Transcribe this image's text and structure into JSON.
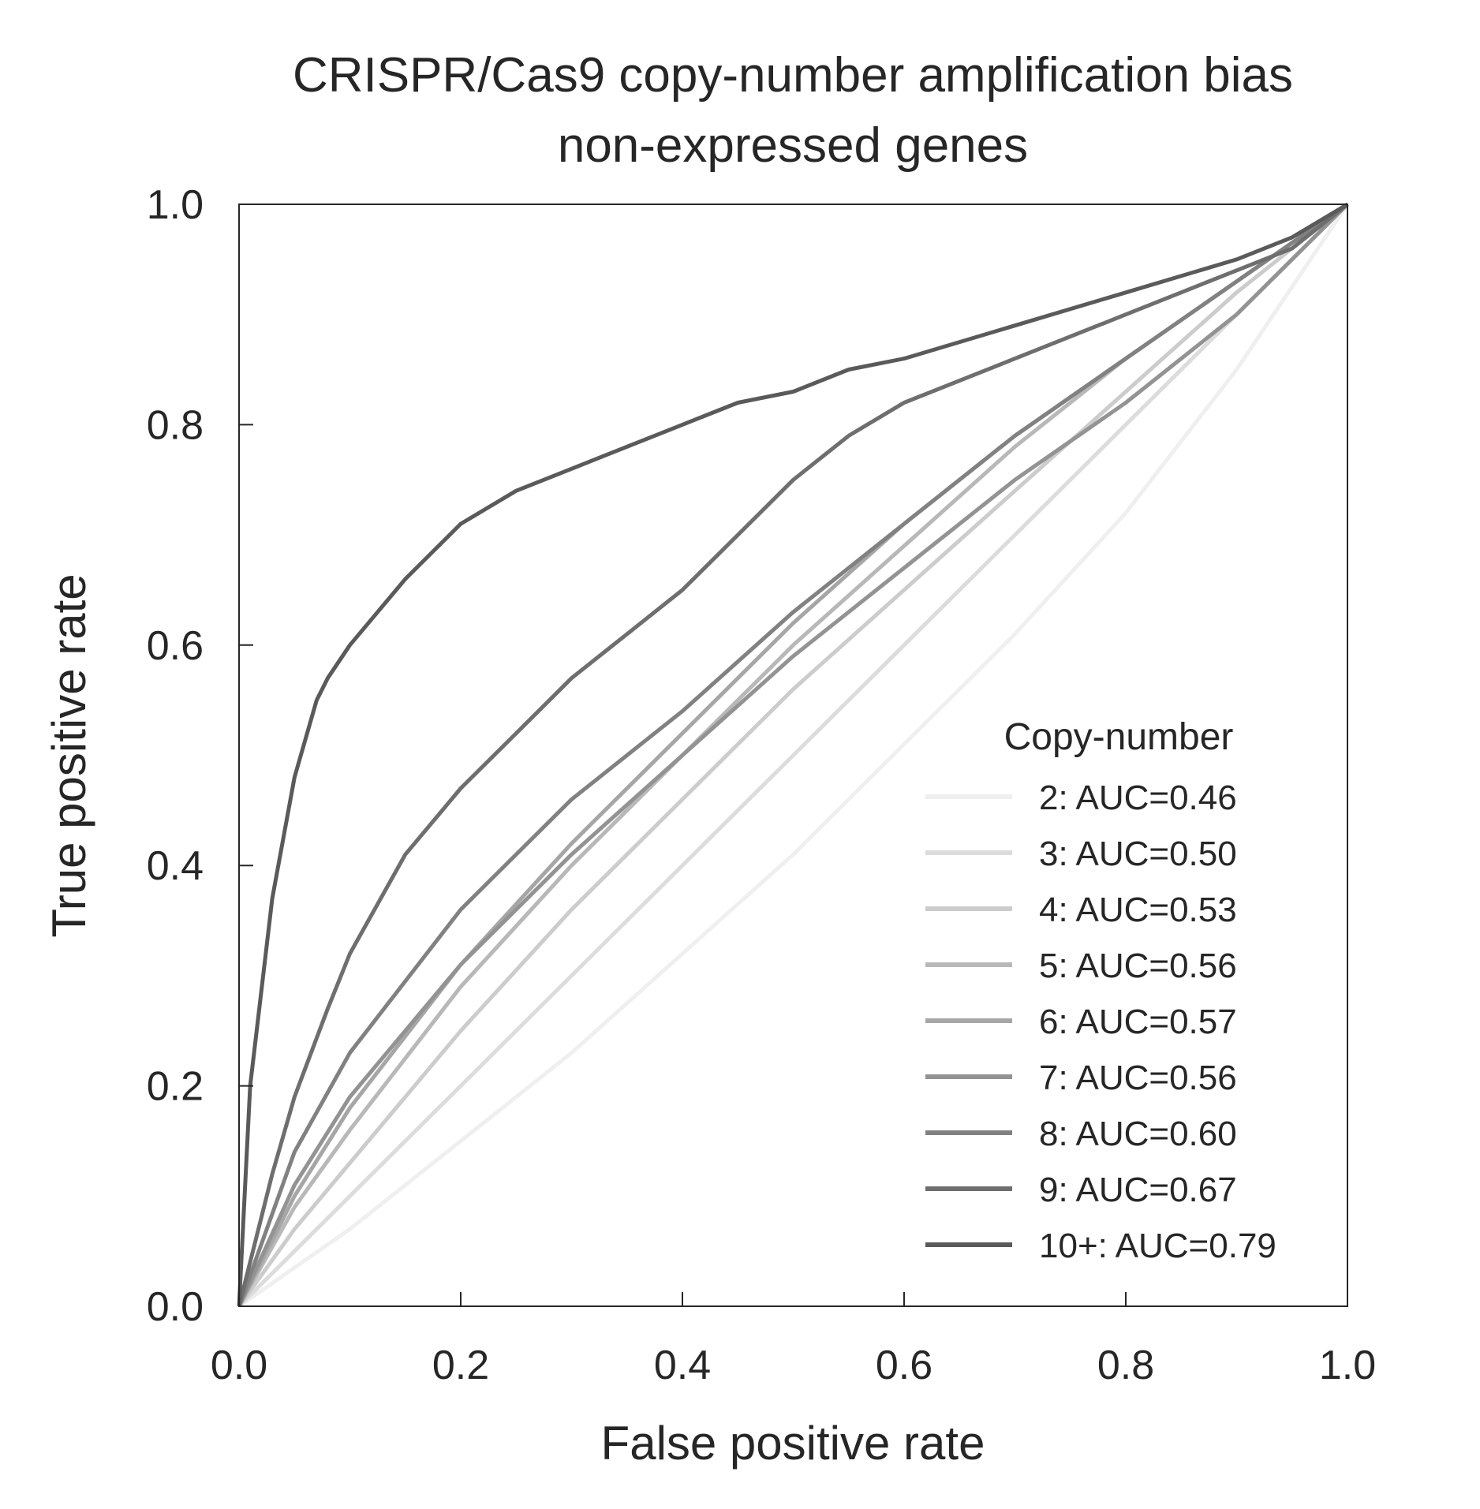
{
  "chart_data": {
    "type": "line",
    "title": "CRISPR/Cas9 copy-number amplification bias",
    "subtitle": "non-expressed genes",
    "xlabel": "False positive rate",
    "ylabel": "True positive rate",
    "xlim": [
      0.0,
      1.0
    ],
    "ylim": [
      0.0,
      1.0
    ],
    "xticks": [
      "0.0",
      "0.2",
      "0.4",
      "0.6",
      "0.8",
      "1.0"
    ],
    "yticks": [
      "0.0",
      "0.2",
      "0.4",
      "0.6",
      "0.8",
      "1.0"
    ],
    "grid": false,
    "diagonal_reference": true,
    "legend": {
      "title": "Copy-number",
      "position": "lower-right"
    },
    "series": [
      {
        "name": "2: AUC=0.46",
        "color": "#efefef",
        "x": [
          0,
          0.1,
          0.2,
          0.3,
          0.4,
          0.5,
          0.6,
          0.7,
          0.8,
          0.9,
          1.0
        ],
        "y": [
          0,
          0.07,
          0.15,
          0.23,
          0.32,
          0.41,
          0.51,
          0.61,
          0.72,
          0.85,
          1.0
        ]
      },
      {
        "name": "3: AUC=0.50",
        "color": "#dcdcdc",
        "x": [
          0,
          0.1,
          0.2,
          0.3,
          0.4,
          0.5,
          0.6,
          0.7,
          0.8,
          0.9,
          1.0
        ],
        "y": [
          0,
          0.1,
          0.2,
          0.3,
          0.4,
          0.5,
          0.6,
          0.7,
          0.8,
          0.9,
          1.0
        ]
      },
      {
        "name": "4: AUC=0.53",
        "color": "#cccccc",
        "x": [
          0,
          0.05,
          0.1,
          0.2,
          0.3,
          0.4,
          0.5,
          0.6,
          0.7,
          0.8,
          0.9,
          1.0
        ],
        "y": [
          0,
          0.07,
          0.13,
          0.25,
          0.36,
          0.46,
          0.56,
          0.65,
          0.74,
          0.83,
          0.92,
          1.0
        ]
      },
      {
        "name": "5: AUC=0.56",
        "color": "#b8b8b8",
        "x": [
          0,
          0.05,
          0.1,
          0.2,
          0.3,
          0.4,
          0.5,
          0.6,
          0.7,
          0.8,
          0.9,
          1.0
        ],
        "y": [
          0,
          0.09,
          0.16,
          0.29,
          0.4,
          0.5,
          0.6,
          0.69,
          0.78,
          0.86,
          0.93,
          1.0
        ]
      },
      {
        "name": "6: AUC=0.57",
        "color": "#a6a6a6",
        "x": [
          0,
          0.05,
          0.1,
          0.2,
          0.3,
          0.4,
          0.5,
          0.6,
          0.7,
          0.8,
          0.9,
          1.0
        ],
        "y": [
          0,
          0.1,
          0.18,
          0.31,
          0.42,
          0.52,
          0.62,
          0.71,
          0.79,
          0.86,
          0.93,
          1.0
        ]
      },
      {
        "name": "7: AUC=0.56",
        "color": "#939393",
        "x": [
          0,
          0.05,
          0.1,
          0.2,
          0.3,
          0.4,
          0.5,
          0.6,
          0.7,
          0.8,
          0.9,
          1.0
        ],
        "y": [
          0,
          0.11,
          0.19,
          0.31,
          0.41,
          0.5,
          0.59,
          0.67,
          0.75,
          0.82,
          0.9,
          1.0
        ]
      },
      {
        "name": "8: AUC=0.60",
        "color": "#818181",
        "x": [
          0,
          0.05,
          0.1,
          0.2,
          0.3,
          0.4,
          0.5,
          0.6,
          0.7,
          0.8,
          0.9,
          1.0
        ],
        "y": [
          0,
          0.14,
          0.23,
          0.36,
          0.46,
          0.54,
          0.63,
          0.71,
          0.79,
          0.86,
          0.93,
          1.0
        ]
      },
      {
        "name": "9: AUC=0.67",
        "color": "#6e6e6e",
        "x": [
          0,
          0.03,
          0.05,
          0.08,
          0.1,
          0.15,
          0.2,
          0.25,
          0.3,
          0.35,
          0.4,
          0.45,
          0.5,
          0.55,
          0.6,
          0.7,
          0.8,
          0.9,
          0.95,
          1.0
        ],
        "y": [
          0,
          0.12,
          0.19,
          0.27,
          0.32,
          0.41,
          0.47,
          0.52,
          0.57,
          0.61,
          0.65,
          0.7,
          0.75,
          0.79,
          0.82,
          0.86,
          0.9,
          0.94,
          0.96,
          1.0
        ]
      },
      {
        "name": "10+: AUC=0.79",
        "color": "#5a5a5a",
        "x": [
          0,
          0.01,
          0.03,
          0.05,
          0.07,
          0.08,
          0.1,
          0.15,
          0.2,
          0.25,
          0.3,
          0.35,
          0.4,
          0.45,
          0.5,
          0.55,
          0.6,
          0.7,
          0.8,
          0.9,
          0.95,
          1.0
        ],
        "y": [
          0,
          0.2,
          0.37,
          0.48,
          0.55,
          0.57,
          0.6,
          0.66,
          0.71,
          0.74,
          0.76,
          0.78,
          0.8,
          0.82,
          0.83,
          0.85,
          0.86,
          0.89,
          0.92,
          0.95,
          0.97,
          1.0
        ]
      }
    ]
  }
}
